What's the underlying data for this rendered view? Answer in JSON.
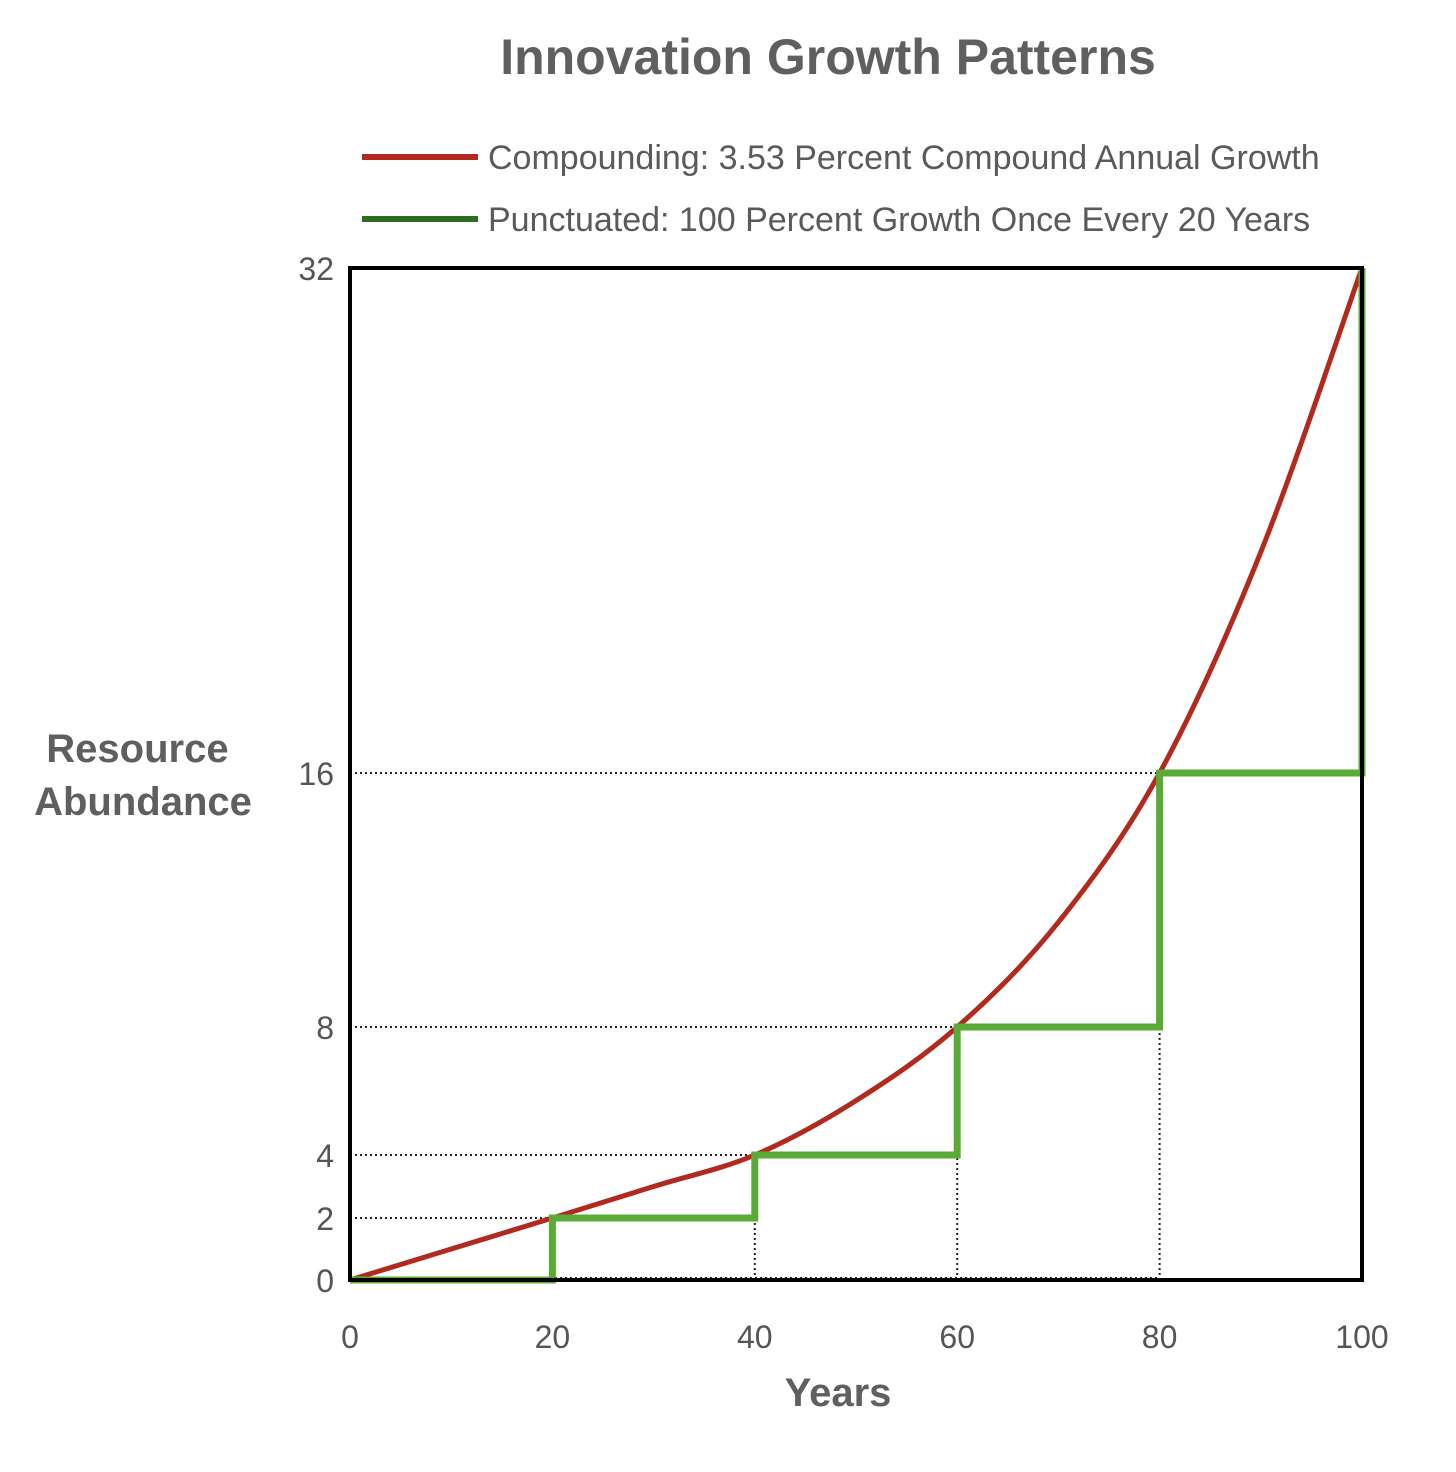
{
  "chart_data": {
    "type": "line",
    "title": "Innovation Growth Patterns",
    "xlabel": "Years",
    "ylabel_lines": [
      "Resource",
      "Abundance"
    ],
    "xlim": [
      0,
      100
    ],
    "ylim": [
      0,
      32
    ],
    "y_scale": "piecewise",
    "x_ticks": [
      0,
      20,
      40,
      60,
      80,
      100
    ],
    "y_ticks": [
      0,
      2,
      4,
      8,
      16,
      32
    ],
    "reference_lines_y": [
      2,
      4,
      8,
      16
    ],
    "reference_lines_x": [
      40,
      60,
      80
    ],
    "grid": false,
    "legend_position": "top",
    "series": [
      {
        "name": "Compounding: 3.53 Percent Compound  Annual Growth",
        "color": "#b22a1e",
        "shape": "smooth",
        "x": [
          0,
          10,
          20,
          30,
          40,
          50,
          60,
          70,
          80,
          90,
          100
        ],
        "y": [
          0,
          1,
          2,
          3,
          4,
          5.7,
          8,
          11.3,
          16,
          23,
          32
        ]
      },
      {
        "name": "Punctuated: 100 Percent Growth Once Every 20 Years",
        "color": "#5aab35",
        "legend_color": "#2e6b22",
        "shape": "step",
        "x": [
          0,
          20,
          20,
          40,
          40,
          60,
          60,
          80,
          80,
          100,
          100
        ],
        "y": [
          0,
          0,
          2,
          2,
          4,
          4,
          8,
          8,
          16,
          16,
          32
        ]
      }
    ]
  }
}
